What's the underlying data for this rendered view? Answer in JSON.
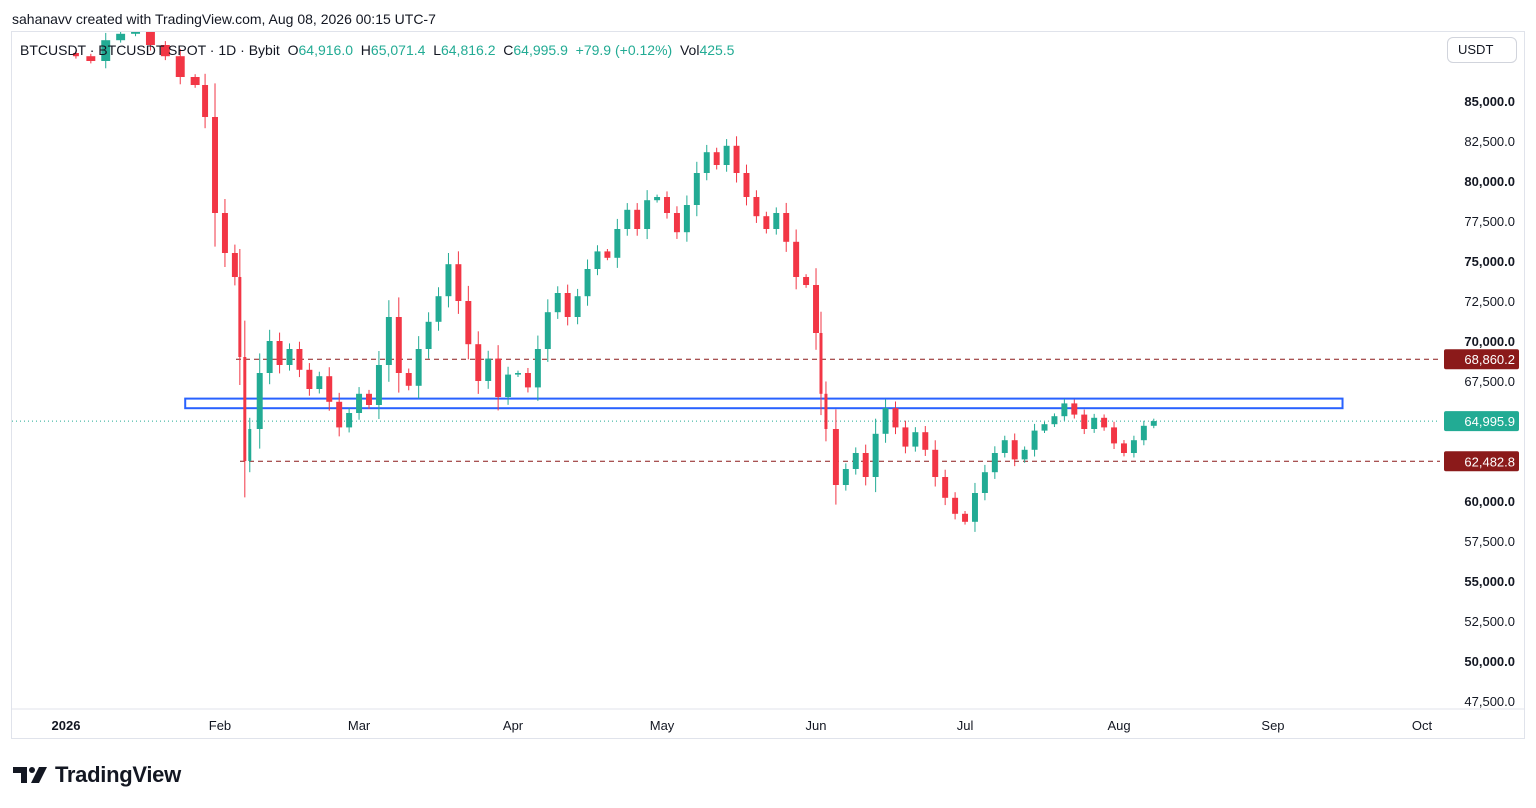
{
  "header": {
    "credit": "sahanavv created with TradingView.com, Aug 08, 2026 00:15 UTC-7"
  },
  "legend": {
    "symbol": "BTCUSDT · BTCUSDT SPOT · 1D · Bybit",
    "open_label": "O",
    "open": "64,916.0",
    "high_label": "H",
    "high": "65,071.4",
    "low_label": "L",
    "low": "64,816.2",
    "close_label": "C",
    "close": "64,995.9",
    "change": "+79.9 (+0.12%)",
    "vol_label": "Vol",
    "vol": "425.5"
  },
  "currency_button": "USDT",
  "branding": {
    "name": "TradingView"
  },
  "colors": {
    "up": "#22ab94",
    "down": "#f23645",
    "zone": "#2962ff",
    "level": "#8b1a1a",
    "price_line": "#22ab94",
    "grid_text": "#131722"
  },
  "chart_data": {
    "type": "candlestick",
    "symbol": "BTCUSDT",
    "interval": "1D",
    "exchange": "Bybit",
    "currency": "USDT",
    "ylim": [
      46500,
      88000
    ],
    "y_ticks": [
      "47,500.0",
      "50,000.0",
      "52,500.0",
      "55,000.0",
      "57,500.0",
      "60,000.0",
      "67,500.0",
      "70,000.0",
      "72,500.0",
      "75,000.0",
      "77,500.0",
      "80,000.0",
      "82,500.0",
      "85,000.0"
    ],
    "y_tick_values": [
      47500,
      50000,
      52500,
      55000,
      57500,
      60000,
      67500,
      70000,
      72500,
      75000,
      77500,
      80000,
      82500,
      85000
    ],
    "x_ticks": [
      {
        "label": "2026",
        "date": "2026-01-01"
      },
      {
        "label": "Feb",
        "date": "2026-02-01"
      },
      {
        "label": "Mar",
        "date": "2026-03-01"
      },
      {
        "label": "Apr",
        "date": "2026-04-01"
      },
      {
        "label": "May",
        "date": "2026-05-01"
      },
      {
        "label": "Jun",
        "date": "2026-06-01"
      },
      {
        "label": "Jul",
        "date": "2026-07-01"
      },
      {
        "label": "Aug",
        "date": "2026-08-01"
      },
      {
        "label": "Sep",
        "date": "2026-09-01"
      },
      {
        "label": "Oct",
        "date": "2026-10-01"
      }
    ],
    "last_price": 64995.9,
    "last_price_label": "64,995.9",
    "resistance_level": 68860.2,
    "resistance_label": "68,860.2",
    "support_level": 62482.8,
    "support_label": "62,482.8",
    "zone": {
      "low": 65800,
      "high": 66400,
      "from": "2026-01-25",
      "to": "2026-09-15"
    },
    "grid": false,
    "closes": [
      [
        "2026-01-01",
        88000
      ],
      [
        "2026-01-03",
        87800
      ],
      [
        "2026-01-06",
        87500
      ],
      [
        "2026-01-09",
        88800
      ],
      [
        "2026-01-12",
        89200
      ],
      [
        "2026-01-15",
        89500
      ],
      [
        "2026-01-18",
        88500
      ],
      [
        "2026-01-21",
        87800
      ],
      [
        "2026-01-24",
        86500
      ],
      [
        "2026-01-27",
        86000
      ],
      [
        "2026-01-29",
        84000
      ],
      [
        "2026-01-31",
        78000
      ],
      [
        "2026-02-02",
        75500
      ],
      [
        "2026-02-04",
        74000
      ],
      [
        "2026-02-05",
        69000
      ],
      [
        "2026-02-06",
        62500
      ],
      [
        "2026-02-07",
        64500
      ],
      [
        "2026-02-09",
        68000
      ],
      [
        "2026-02-11",
        70000
      ],
      [
        "2026-02-13",
        68500
      ],
      [
        "2026-02-15",
        69500
      ],
      [
        "2026-02-17",
        68200
      ],
      [
        "2026-02-19",
        67000
      ],
      [
        "2026-02-21",
        67800
      ],
      [
        "2026-02-23",
        66200
      ],
      [
        "2026-02-25",
        64600
      ],
      [
        "2026-02-27",
        65500
      ],
      [
        "2026-03-01",
        66700
      ],
      [
        "2026-03-03",
        66000
      ],
      [
        "2026-03-05",
        68500
      ],
      [
        "2026-03-07",
        71500
      ],
      [
        "2026-03-09",
        68000
      ],
      [
        "2026-03-11",
        67200
      ],
      [
        "2026-03-13",
        69500
      ],
      [
        "2026-03-15",
        71200
      ],
      [
        "2026-03-17",
        72800
      ],
      [
        "2026-03-19",
        74800
      ],
      [
        "2026-03-21",
        72500
      ],
      [
        "2026-03-23",
        69800
      ],
      [
        "2026-03-25",
        67500
      ],
      [
        "2026-03-27",
        68900
      ],
      [
        "2026-03-29",
        66500
      ],
      [
        "2026-03-31",
        67900
      ],
      [
        "2026-04-02",
        68000
      ],
      [
        "2026-04-04",
        67100
      ],
      [
        "2026-04-06",
        69500
      ],
      [
        "2026-04-08",
        71800
      ],
      [
        "2026-04-10",
        73000
      ],
      [
        "2026-04-12",
        71500
      ],
      [
        "2026-04-14",
        72800
      ],
      [
        "2026-04-16",
        74500
      ],
      [
        "2026-04-18",
        75600
      ],
      [
        "2026-04-20",
        75200
      ],
      [
        "2026-04-22",
        77000
      ],
      [
        "2026-04-24",
        78200
      ],
      [
        "2026-04-26",
        77000
      ],
      [
        "2026-04-28",
        78800
      ],
      [
        "2026-04-30",
        79000
      ],
      [
        "2026-05-02",
        78000
      ],
      [
        "2026-05-04",
        76800
      ],
      [
        "2026-05-06",
        78500
      ],
      [
        "2026-05-08",
        80500
      ],
      [
        "2026-05-10",
        81800
      ],
      [
        "2026-05-12",
        81000
      ],
      [
        "2026-05-14",
        82200
      ],
      [
        "2026-05-16",
        80500
      ],
      [
        "2026-05-18",
        79000
      ],
      [
        "2026-05-20",
        77800
      ],
      [
        "2026-05-22",
        77000
      ],
      [
        "2026-05-24",
        78000
      ],
      [
        "2026-05-26",
        76200
      ],
      [
        "2026-05-28",
        74000
      ],
      [
        "2026-05-30",
        73500
      ],
      [
        "2026-06-01",
        70500
      ],
      [
        "2026-06-02",
        66700
      ],
      [
        "2026-06-03",
        64500
      ],
      [
        "2026-06-05",
        61000
      ],
      [
        "2026-06-07",
        62000
      ],
      [
        "2026-06-09",
        63000
      ],
      [
        "2026-06-11",
        61500
      ],
      [
        "2026-06-13",
        64200
      ],
      [
        "2026-06-15",
        65800
      ],
      [
        "2026-06-17",
        64600
      ],
      [
        "2026-06-19",
        63400
      ],
      [
        "2026-06-21",
        64300
      ],
      [
        "2026-06-23",
        63200
      ],
      [
        "2026-06-25",
        61500
      ],
      [
        "2026-06-27",
        60200
      ],
      [
        "2026-06-29",
        59200
      ],
      [
        "2026-07-01",
        58700
      ],
      [
        "2026-07-03",
        60500
      ],
      [
        "2026-07-05",
        61800
      ],
      [
        "2026-07-07",
        63000
      ],
      [
        "2026-07-09",
        63800
      ],
      [
        "2026-07-11",
        62600
      ],
      [
        "2026-07-13",
        63200
      ],
      [
        "2026-07-15",
        64400
      ],
      [
        "2026-07-17",
        64800
      ],
      [
        "2026-07-19",
        65300
      ],
      [
        "2026-07-21",
        66100
      ],
      [
        "2026-07-23",
        65400
      ],
      [
        "2026-07-25",
        64500
      ],
      [
        "2026-07-27",
        65200
      ],
      [
        "2026-07-29",
        64600
      ],
      [
        "2026-07-31",
        63600
      ],
      [
        "2026-08-02",
        63000
      ],
      [
        "2026-08-04",
        63800
      ],
      [
        "2026-08-06",
        64700
      ],
      [
        "2026-08-08",
        64995.9
      ]
    ]
  }
}
